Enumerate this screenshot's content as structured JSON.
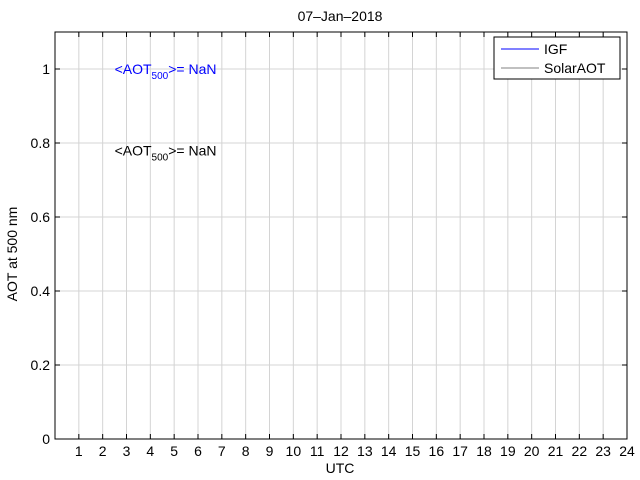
{
  "chart_data": {
    "type": "line",
    "title": "07–Jan–2018",
    "xlabel": "UTC",
    "ylabel": "AOT at 500 nm",
    "xlim": [
      0,
      24
    ],
    "ylim": [
      0,
      1.1
    ],
    "x_ticks": [
      1,
      2,
      3,
      4,
      5,
      6,
      7,
      8,
      9,
      10,
      11,
      12,
      13,
      14,
      15,
      16,
      17,
      18,
      19,
      20,
      21,
      22,
      23,
      24
    ],
    "y_ticks": [
      0,
      0.2,
      0.4,
      0.6,
      0.8,
      1
    ],
    "y_tick_labels": [
      "0",
      "0.2",
      "0.4",
      "0.6",
      "0.8",
      "1"
    ],
    "grid": true,
    "legend_position": "top-right",
    "series": [
      {
        "name": "IGF",
        "color": "#0000ff",
        "x": [],
        "y": []
      },
      {
        "name": "SolarAOT",
        "color": "#808080",
        "x": [],
        "y": []
      }
    ],
    "annotations": [
      {
        "prefix": "<AOT",
        "sub": "500",
        "suffix": ">=  NaN",
        "color": "#0000ff",
        "x": 2.5,
        "y": 1.0
      },
      {
        "prefix": "<AOT",
        "sub": "500",
        "suffix": ">=  NaN",
        "color": "#000000",
        "x": 2.5,
        "y": 0.78
      }
    ]
  }
}
